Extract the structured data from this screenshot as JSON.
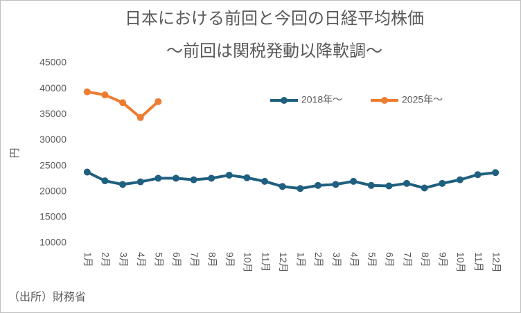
{
  "chart_data": {
    "type": "line",
    "title": "日本における前回と今回の日経平均株価",
    "subtitle": "～前回は関税発動以降軟調～",
    "y_label": "円",
    "source": "（出所）財務省",
    "categories": [
      "1月",
      "2月",
      "3月",
      "4月",
      "5月",
      "6月",
      "7月",
      "8月",
      "9月",
      "10月",
      "11月",
      "12月",
      "1月",
      "2月",
      "3月",
      "4月",
      "5月",
      "6月",
      "7月",
      "8月",
      "9月",
      "10月",
      "11月",
      "12月"
    ],
    "series": [
      {
        "name": "2018年～",
        "color": "#1f5f7f",
        "values": [
          23800,
          22100,
          21400,
          21900,
          22600,
          22600,
          22300,
          22600,
          23200,
          22700,
          22000,
          21000,
          20600,
          21200,
          21400,
          22000,
          21200,
          21100,
          21600,
          20700,
          21600,
          22300,
          23300,
          23700
        ]
      },
      {
        "name": "2025年～",
        "color": "#ed7d31",
        "values": [
          39400,
          38800,
          37300,
          34400,
          37500,
          null,
          null,
          null,
          null,
          null,
          null,
          null,
          null,
          null,
          null,
          null,
          null,
          null,
          null,
          null,
          null,
          null,
          null,
          null
        ]
      }
    ],
    "ylim": [
      10000,
      45000
    ],
    "yticks": [
      10000,
      15000,
      20000,
      25000,
      30000,
      35000,
      40000,
      45000
    ],
    "grid": false,
    "legend": "top-right"
  }
}
